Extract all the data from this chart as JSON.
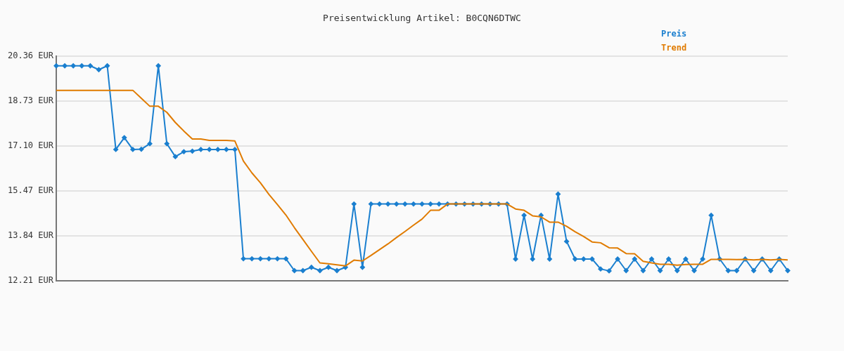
{
  "chart_data": {
    "type": "line",
    "title": "Preisentwicklung Artikel: B0CQN6DTWC",
    "categories": [
      null,
      null,
      null,
      null,
      null,
      null,
      null,
      null,
      null,
      null,
      null,
      null,
      null,
      null,
      null,
      null,
      null,
      null,
      null,
      null,
      null,
      null,
      null,
      null,
      null,
      null,
      null,
      null,
      null,
      null,
      null,
      null,
      null,
      null,
      null,
      null,
      null,
      null,
      null,
      null,
      null,
      null,
      null,
      null,
      null,
      null,
      null,
      null,
      null,
      null,
      null,
      null,
      null,
      null,
      null,
      null,
      null,
      null,
      null,
      null,
      null,
      null,
      null,
      null,
      null,
      null,
      null,
      null,
      null,
      null,
      null,
      null,
      null,
      null,
      null,
      null,
      null,
      null,
      null,
      null,
      null,
      null,
      null,
      null,
      null,
      null,
      null
    ],
    "series": [
      {
        "name": "Preis",
        "color": "#1a7fcf",
        "marker": "diamond",
        "values": [
          20.01,
          20.01,
          20.01,
          20.01,
          20.01,
          19.87,
          20.01,
          16.97,
          17.4,
          16.97,
          16.98,
          17.18,
          20.01,
          17.18,
          16.71,
          16.89,
          16.91,
          16.97,
          16.97,
          16.97,
          16.97,
          16.97,
          13.0,
          13.0,
          13.0,
          13.0,
          13.0,
          13.0,
          12.57,
          12.57,
          12.69,
          12.57,
          12.69,
          12.57,
          12.69,
          14.99,
          12.69,
          14.99,
          14.99,
          14.99,
          14.99,
          14.99,
          14.99,
          14.99,
          14.99,
          14.99,
          14.99,
          14.99,
          14.99,
          14.99,
          14.99,
          14.99,
          14.99,
          14.99,
          12.99,
          14.58,
          12.99,
          14.58,
          12.99,
          15.35,
          13.63,
          12.99,
          12.99,
          12.99,
          12.63,
          12.56,
          12.99,
          12.57,
          12.99,
          12.57,
          12.99,
          12.57,
          12.99,
          12.57,
          12.99,
          12.57,
          12.99,
          14.58,
          12.99,
          12.57,
          12.57,
          12.99,
          12.57,
          12.99,
          12.57,
          12.99,
          12.57
        ]
      },
      {
        "name": "Trend",
        "color": "#e07b00",
        "marker": "none",
        "values": [
          19.12,
          19.12,
          19.12,
          19.12,
          19.12,
          19.12,
          19.12,
          19.12,
          19.12,
          19.12,
          18.83,
          18.54,
          18.54,
          18.32,
          17.95,
          17.64,
          17.35,
          17.35,
          17.3,
          17.3,
          17.3,
          17.28,
          16.55,
          16.12,
          15.76,
          15.34,
          14.97,
          14.59,
          14.13,
          13.7,
          13.27,
          12.85,
          12.82,
          12.78,
          12.74,
          12.95,
          12.92,
          13.12,
          13.33,
          13.54,
          13.77,
          13.99,
          14.22,
          14.44,
          14.76,
          14.76,
          14.99,
          14.99,
          14.99,
          14.99,
          14.99,
          14.99,
          14.99,
          14.99,
          14.81,
          14.76,
          14.56,
          14.52,
          14.33,
          14.33,
          14.18,
          13.98,
          13.81,
          13.61,
          13.58,
          13.4,
          13.39,
          13.19,
          13.18,
          12.91,
          12.85,
          12.8,
          12.8,
          12.77,
          12.79,
          12.8,
          12.8,
          12.98,
          12.98,
          12.98,
          12.97,
          12.98,
          12.96,
          12.98,
          12.96,
          12.98,
          12.96
        ]
      }
    ],
    "ylim": [
      12.21,
      20.36
    ],
    "yticks": [
      {
        "value": 12.21,
        "label": "12.21 EUR"
      },
      {
        "value": 13.84,
        "label": "13.84 EUR"
      },
      {
        "value": 15.47,
        "label": "15.47 EUR"
      },
      {
        "value": 17.1,
        "label": "17.10 EUR"
      },
      {
        "value": 18.73,
        "label": "18.73 EUR"
      },
      {
        "value": 20.36,
        "label": "20.36 EUR"
      }
    ],
    "grid": "y",
    "legend": "top right",
    "line_style": "solid"
  }
}
